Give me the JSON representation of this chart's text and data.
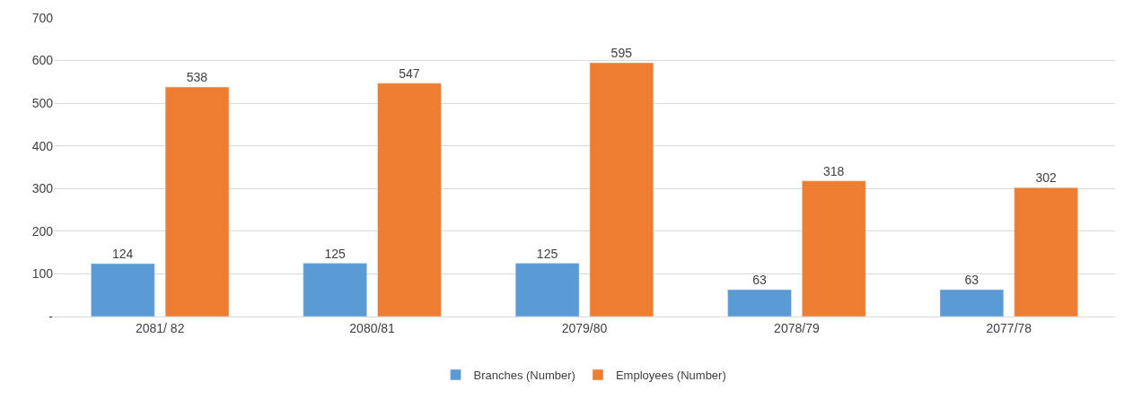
{
  "chart_data": {
    "type": "bar",
    "categories": [
      "2081/ 82",
      "2080/81",
      "2079/80",
      "2078/79",
      "2077/78"
    ],
    "series": [
      {
        "name": "Branches (Number)",
        "color": "#5b9bd5",
        "values": [
          124,
          125,
          125,
          63,
          63
        ]
      },
      {
        "name": "Employees (Number)",
        "color": "#ed7d31",
        "values": [
          538,
          547,
          595,
          318,
          302
        ]
      }
    ],
    "ylim": [
      0,
      700
    ],
    "yticks": [
      {
        "value": 0,
        "label": "-"
      },
      100,
      200,
      300,
      400,
      500,
      600,
      700
    ],
    "grid": "y",
    "legend": "bottom",
    "data_labels": true
  }
}
